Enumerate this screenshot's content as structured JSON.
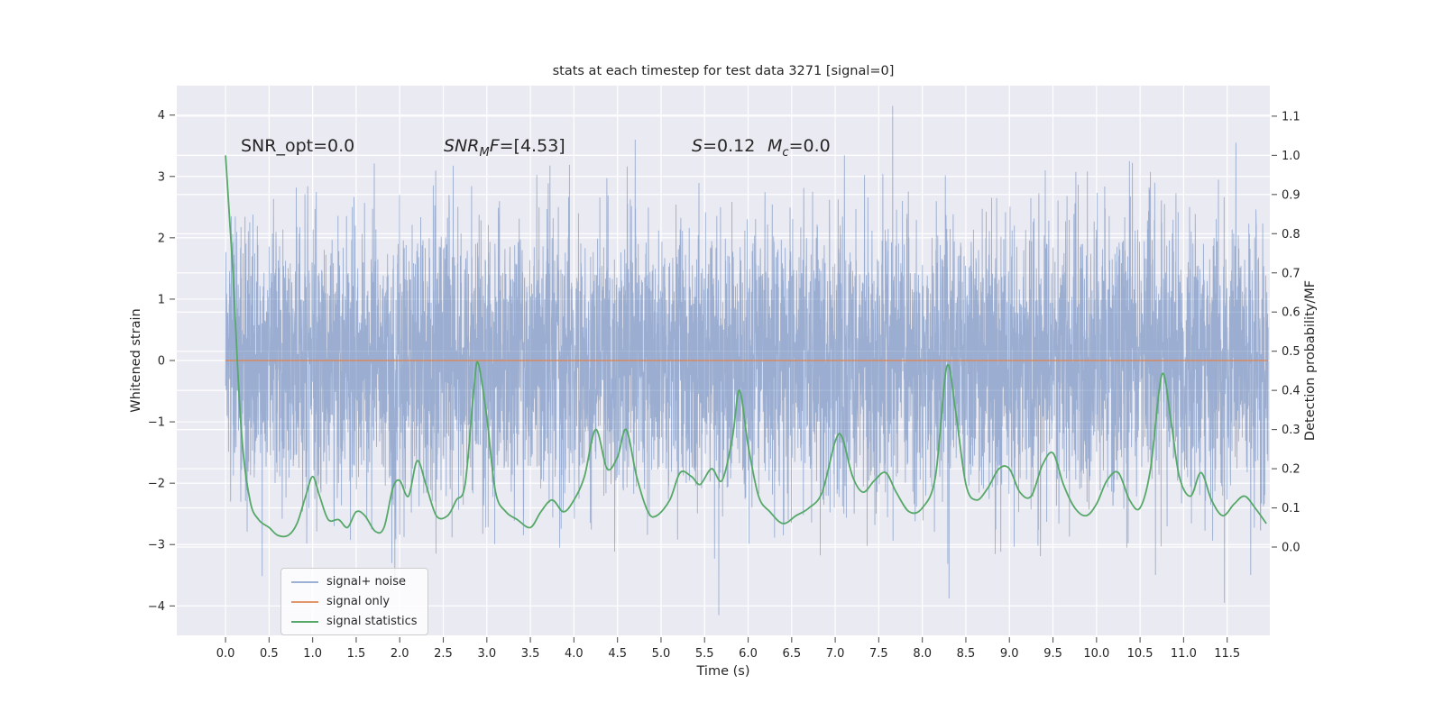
{
  "theme": {
    "background": "#ffffff",
    "axes_bg": "#eaeaf2",
    "grid": "#ffffff",
    "text": "#262626",
    "tick": "#555555"
  },
  "chart_data": {
    "type": "line",
    "title": "stats at each timestep for test data 3271 [signal=0]",
    "xlabel": "Time (s)",
    "ylabel_left": "Whitened strain",
    "ylabel_right": "Detection probability/MF",
    "xlim": [
      -0.56,
      11.99
    ],
    "ylim_left": [
      -4.48,
      4.48
    ],
    "ylim_right": [
      -0.2255,
      1.178
    ],
    "xticks": [
      0.0,
      0.5,
      1.0,
      1.5,
      2.0,
      2.5,
      3.0,
      3.5,
      4.0,
      4.5,
      5.0,
      5.5,
      6.0,
      6.5,
      7.0,
      7.5,
      8.0,
      8.5,
      9.0,
      9.5,
      10.0,
      10.5,
      11.0,
      11.5
    ],
    "yticks_left": [
      -4,
      -3,
      -2,
      -1,
      0,
      1,
      2,
      3,
      4
    ],
    "yticks_right": [
      0.0,
      0.1,
      0.2,
      0.3,
      0.4,
      0.5,
      0.6,
      0.7,
      0.8,
      0.9,
      1.0,
      1.1
    ],
    "grid": true,
    "legend_position": "lower left",
    "annotations": [
      {
        "id": "snr_opt",
        "text": "SNR_opt=0.0"
      },
      {
        "id": "snr_mf",
        "pre": "SNR",
        "sub": "M",
        "mid": "F",
        "post": "=[4.53]"
      },
      {
        "id": "s",
        "pre": "S",
        "post": "=0.12"
      },
      {
        "id": "mc",
        "pre": "M",
        "sub": "c",
        "post": "=0.0"
      }
    ],
    "series": [
      {
        "name": "signal+ noise",
        "axis": "left",
        "color": "#4c72b0",
        "alpha": 0.5,
        "kind": "gaussian_noise",
        "noise": {
          "seed": 3271,
          "n": 6000,
          "sigma": 1.12,
          "clip": 4.15,
          "t_start": 0.0,
          "t_end": 11.97
        }
      },
      {
        "name": "signal only",
        "axis": "left",
        "color": "#dd8452",
        "alpha": 0.9,
        "kind": "constant",
        "value": 0.0,
        "t_start": 0.0,
        "t_end": 11.97
      },
      {
        "name": "signal statistics",
        "axis": "right",
        "color": "#55a868",
        "alpha": 1.0,
        "kind": "curve",
        "points": [
          [
            0.0,
            1.0
          ],
          [
            0.08,
            0.72
          ],
          [
            0.18,
            0.3
          ],
          [
            0.28,
            0.12
          ],
          [
            0.38,
            0.07
          ],
          [
            0.5,
            0.05
          ],
          [
            0.6,
            0.03
          ],
          [
            0.72,
            0.03
          ],
          [
            0.82,
            0.06
          ],
          [
            0.92,
            0.13
          ],
          [
            1.0,
            0.18
          ],
          [
            1.08,
            0.13
          ],
          [
            1.18,
            0.07
          ],
          [
            1.3,
            0.07
          ],
          [
            1.4,
            0.05
          ],
          [
            1.5,
            0.09
          ],
          [
            1.6,
            0.08
          ],
          [
            1.72,
            0.04
          ],
          [
            1.82,
            0.05
          ],
          [
            1.92,
            0.15
          ],
          [
            2.0,
            0.17
          ],
          [
            2.1,
            0.13
          ],
          [
            2.2,
            0.22
          ],
          [
            2.3,
            0.16
          ],
          [
            2.42,
            0.08
          ],
          [
            2.55,
            0.08
          ],
          [
            2.65,
            0.12
          ],
          [
            2.75,
            0.16
          ],
          [
            2.85,
            0.4
          ],
          [
            2.9,
            0.47
          ],
          [
            3.0,
            0.33
          ],
          [
            3.1,
            0.14
          ],
          [
            3.22,
            0.09
          ],
          [
            3.35,
            0.07
          ],
          [
            3.5,
            0.05
          ],
          [
            3.62,
            0.09
          ],
          [
            3.75,
            0.12
          ],
          [
            3.88,
            0.09
          ],
          [
            4.0,
            0.12
          ],
          [
            4.12,
            0.18
          ],
          [
            4.25,
            0.3
          ],
          [
            4.38,
            0.2
          ],
          [
            4.5,
            0.23
          ],
          [
            4.6,
            0.3
          ],
          [
            4.72,
            0.18
          ],
          [
            4.85,
            0.09
          ],
          [
            4.95,
            0.08
          ],
          [
            5.1,
            0.12
          ],
          [
            5.22,
            0.19
          ],
          [
            5.35,
            0.18
          ],
          [
            5.45,
            0.16
          ],
          [
            5.58,
            0.2
          ],
          [
            5.7,
            0.17
          ],
          [
            5.82,
            0.28
          ],
          [
            5.9,
            0.4
          ],
          [
            6.0,
            0.26
          ],
          [
            6.12,
            0.13
          ],
          [
            6.25,
            0.09
          ],
          [
            6.4,
            0.06
          ],
          [
            6.55,
            0.08
          ],
          [
            6.7,
            0.1
          ],
          [
            6.85,
            0.14
          ],
          [
            7.0,
            0.27
          ],
          [
            7.08,
            0.28
          ],
          [
            7.2,
            0.18
          ],
          [
            7.32,
            0.14
          ],
          [
            7.45,
            0.17
          ],
          [
            7.58,
            0.19
          ],
          [
            7.7,
            0.14
          ],
          [
            7.85,
            0.09
          ],
          [
            8.0,
            0.1
          ],
          [
            8.15,
            0.18
          ],
          [
            8.28,
            0.46
          ],
          [
            8.38,
            0.35
          ],
          [
            8.5,
            0.16
          ],
          [
            8.62,
            0.12
          ],
          [
            8.75,
            0.15
          ],
          [
            8.88,
            0.2
          ],
          [
            9.0,
            0.2
          ],
          [
            9.12,
            0.14
          ],
          [
            9.25,
            0.13
          ],
          [
            9.38,
            0.21
          ],
          [
            9.5,
            0.24
          ],
          [
            9.62,
            0.16
          ],
          [
            9.75,
            0.1
          ],
          [
            9.88,
            0.08
          ],
          [
            10.0,
            0.11
          ],
          [
            10.12,
            0.17
          ],
          [
            10.25,
            0.19
          ],
          [
            10.38,
            0.12
          ],
          [
            10.5,
            0.1
          ],
          [
            10.62,
            0.2
          ],
          [
            10.75,
            0.44
          ],
          [
            10.85,
            0.33
          ],
          [
            10.95,
            0.18
          ],
          [
            11.08,
            0.13
          ],
          [
            11.2,
            0.19
          ],
          [
            11.32,
            0.12
          ],
          [
            11.45,
            0.08
          ],
          [
            11.58,
            0.11
          ],
          [
            11.7,
            0.13
          ],
          [
            11.82,
            0.1
          ],
          [
            11.95,
            0.06
          ]
        ]
      }
    ]
  },
  "legend": {
    "items": [
      {
        "label": "signal+ noise",
        "color": "#4c72b0",
        "alpha": 0.55
      },
      {
        "label": "signal only",
        "color": "#dd8452",
        "alpha": 0.85
      },
      {
        "label": "signal statistics",
        "color": "#55a868",
        "alpha": 1.0
      }
    ]
  }
}
